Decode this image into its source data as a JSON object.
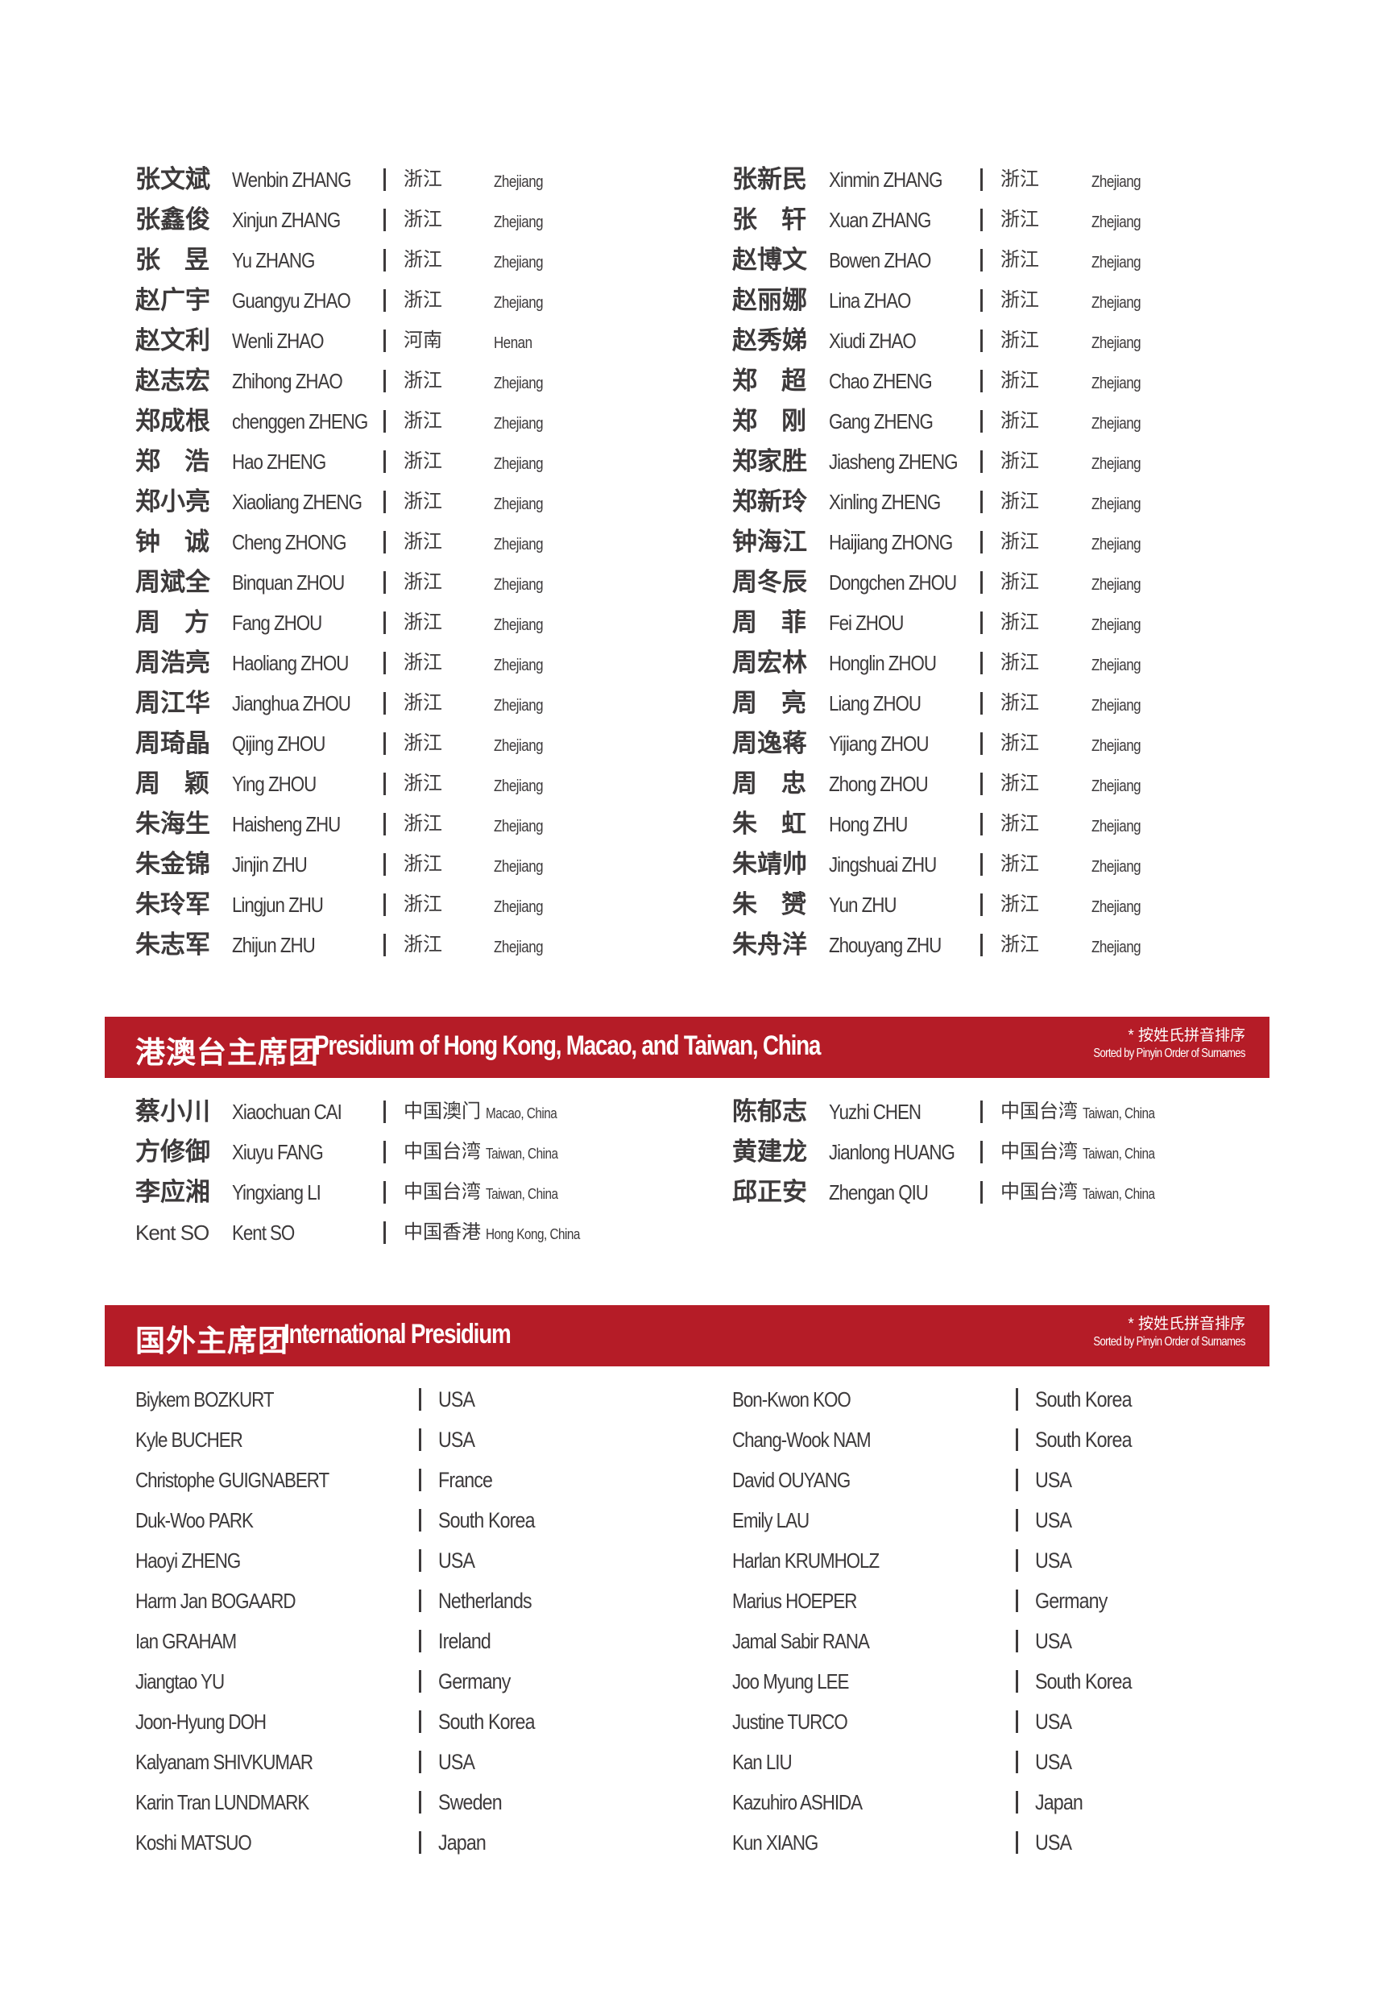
{
  "colors": {
    "accent": "#b51c27",
    "text": "#3d3a3b"
  },
  "mainland": {
    "left": [
      {
        "cn": "张文斌",
        "en": "Wenbin ZHANG",
        "pcn": "浙江",
        "pen": "Zhejiang"
      },
      {
        "cn": "张鑫俊",
        "en": "Xinjun ZHANG",
        "pcn": "浙江",
        "pen": "Zhejiang"
      },
      {
        "cn": "张昱",
        "en": "Yu ZHANG",
        "pcn": "浙江",
        "pen": "Zhejiang"
      },
      {
        "cn": "赵广宇",
        "en": "Guangyu ZHAO",
        "pcn": "浙江",
        "pen": "Zhejiang"
      },
      {
        "cn": "赵文利",
        "en": "Wenli ZHAO",
        "pcn": "河南",
        "pen": "Henan"
      },
      {
        "cn": "赵志宏",
        "en": "Zhihong ZHAO",
        "pcn": "浙江",
        "pen": "Zhejiang"
      },
      {
        "cn": "郑成根",
        "en": "chenggen ZHENG",
        "pcn": "浙江",
        "pen": "Zhejiang"
      },
      {
        "cn": "郑浩",
        "en": "Hao ZHENG",
        "pcn": "浙江",
        "pen": "Zhejiang"
      },
      {
        "cn": "郑小亮",
        "en": "Xiaoliang ZHENG",
        "pcn": "浙江",
        "pen": "Zhejiang"
      },
      {
        "cn": "钟诚",
        "en": "Cheng ZHONG",
        "pcn": "浙江",
        "pen": "Zhejiang"
      },
      {
        "cn": "周斌全",
        "en": "Binquan ZHOU",
        "pcn": "浙江",
        "pen": "Zhejiang"
      },
      {
        "cn": "周方",
        "en": "Fang ZHOU",
        "pcn": "浙江",
        "pen": "Zhejiang"
      },
      {
        "cn": "周浩亮",
        "en": "Haoliang ZHOU",
        "pcn": "浙江",
        "pen": "Zhejiang"
      },
      {
        "cn": "周江华",
        "en": "Jianghua ZHOU",
        "pcn": "浙江",
        "pen": "Zhejiang"
      },
      {
        "cn": "周琦晶",
        "en": "Qijing ZHOU",
        "pcn": "浙江",
        "pen": "Zhejiang"
      },
      {
        "cn": "周颖",
        "en": "Ying ZHOU",
        "pcn": "浙江",
        "pen": "Zhejiang"
      },
      {
        "cn": "朱海生",
        "en": "Haisheng ZHU",
        "pcn": "浙江",
        "pen": "Zhejiang"
      },
      {
        "cn": "朱金锦",
        "en": "Jinjin ZHU",
        "pcn": "浙江",
        "pen": "Zhejiang"
      },
      {
        "cn": "朱玲军",
        "en": "Lingjun ZHU",
        "pcn": "浙江",
        "pen": "Zhejiang"
      },
      {
        "cn": "朱志军",
        "en": "Zhijun ZHU",
        "pcn": "浙江",
        "pen": "Zhejiang"
      }
    ],
    "right": [
      {
        "cn": "张新民",
        "en": "Xinmin ZHANG",
        "pcn": "浙江",
        "pen": "Zhejiang"
      },
      {
        "cn": "张轩",
        "en": "Xuan ZHANG",
        "pcn": "浙江",
        "pen": "Zhejiang"
      },
      {
        "cn": "赵博文",
        "en": "Bowen ZHAO",
        "pcn": "浙江",
        "pen": "Zhejiang"
      },
      {
        "cn": "赵丽娜",
        "en": "Lina ZHAO",
        "pcn": "浙江",
        "pen": "Zhejiang"
      },
      {
        "cn": "赵秀娣",
        "en": "Xiudi ZHAO",
        "pcn": "浙江",
        "pen": "Zhejiang"
      },
      {
        "cn": "郑超",
        "en": "Chao ZHENG",
        "pcn": "浙江",
        "pen": "Zhejiang"
      },
      {
        "cn": "郑刚",
        "en": "Gang ZHENG",
        "pcn": "浙江",
        "pen": "Zhejiang"
      },
      {
        "cn": "郑家胜",
        "en": "Jiasheng ZHENG",
        "pcn": "浙江",
        "pen": "Zhejiang"
      },
      {
        "cn": "郑新玲",
        "en": "Xinling ZHENG",
        "pcn": "浙江",
        "pen": "Zhejiang"
      },
      {
        "cn": "钟海江",
        "en": "Haijiang ZHONG",
        "pcn": "浙江",
        "pen": "Zhejiang"
      },
      {
        "cn": "周冬辰",
        "en": "Dongchen ZHOU",
        "pcn": "浙江",
        "pen": "Zhejiang"
      },
      {
        "cn": "周菲",
        "en": "Fei ZHOU",
        "pcn": "浙江",
        "pen": "Zhejiang"
      },
      {
        "cn": "周宏林",
        "en": "Honglin ZHOU",
        "pcn": "浙江",
        "pen": "Zhejiang"
      },
      {
        "cn": "周亮",
        "en": "Liang ZHOU",
        "pcn": "浙江",
        "pen": "Zhejiang"
      },
      {
        "cn": "周逸蒋",
        "en": "Yijiang ZHOU",
        "pcn": "浙江",
        "pen": "Zhejiang"
      },
      {
        "cn": "周忠",
        "en": "Zhong ZHOU",
        "pcn": "浙江",
        "pen": "Zhejiang"
      },
      {
        "cn": "朱虹",
        "en": "Hong ZHU",
        "pcn": "浙江",
        "pen": "Zhejiang"
      },
      {
        "cn": "朱靖帅",
        "en": "Jingshuai ZHU",
        "pcn": "浙江",
        "pen": "Zhejiang"
      },
      {
        "cn": "朱赟",
        "en": "Yun ZHU",
        "pcn": "浙江",
        "pen": "Zhejiang"
      },
      {
        "cn": "朱舟洋",
        "en": "Zhouyang ZHU",
        "pcn": "浙江",
        "pen": "Zhejiang"
      }
    ]
  },
  "hmt": {
    "title_cn": "港澳台主席团",
    "title_en": "Presidium of Hong Kong, Macao, and Taiwan, China",
    "note_cn": "* 按姓氏拼音排序",
    "note_en": "Sorted by Pinyin Order of Surnames",
    "left": [
      {
        "cn": "蔡小川",
        "en": "Xiaochuan CAI",
        "pcn": "中国澳门",
        "pen": "Macao, China"
      },
      {
        "cn": "方修御",
        "en": "Xiuyu FANG",
        "pcn": "中国台湾",
        "pen": "Taiwan, China"
      },
      {
        "cn": "李应湘",
        "en": "Yingxiang LI",
        "pcn": "中国台湾",
        "pen": "Taiwan, China"
      },
      {
        "cn": "Kent SO",
        "en": "Kent SO",
        "pcn": "中国香港",
        "pen": "Hong Kong, China",
        "latin": true
      }
    ],
    "right": [
      {
        "cn": "陈郁志",
        "en": "Yuzhi CHEN",
        "pcn": "中国台湾",
        "pen": "Taiwan, China"
      },
      {
        "cn": "黄建龙",
        "en": "Jianlong HUANG",
        "pcn": "中国台湾",
        "pen": "Taiwan, China"
      },
      {
        "cn": "邱正安",
        "en": "Zhengan QIU",
        "pcn": "中国台湾",
        "pen": "Taiwan, China"
      }
    ]
  },
  "intl": {
    "title_cn": "国外主席团",
    "title_en": "International Presidium",
    "note_cn": "* 按姓氏拼音排序",
    "note_en": "Sorted by Pinyin Order of Surnames",
    "left": [
      {
        "name": "Biykem BOZKURT",
        "country": "USA"
      },
      {
        "name": "Kyle BUCHER",
        "country": "USA"
      },
      {
        "name": "Christophe GUIGNABERT",
        "country": "France"
      },
      {
        "name": "Duk-Woo PARK",
        "country": "South Korea"
      },
      {
        "name": "Haoyi ZHENG",
        "country": "USA"
      },
      {
        "name": "Harm Jan BOGAARD",
        "country": "Netherlands"
      },
      {
        "name": "Ian GRAHAM",
        "country": "Ireland"
      },
      {
        "name": "Jiangtao YU",
        "country": "Germany"
      },
      {
        "name": "Joon-Hyung DOH",
        "country": "South Korea"
      },
      {
        "name": "Kalyanam SHIVKUMAR",
        "country": "USA"
      },
      {
        "name": "Karin Tran LUNDMARK",
        "country": "Sweden"
      },
      {
        "name": "Koshi  MATSUO",
        "country": "Japan"
      }
    ],
    "right": [
      {
        "name": "Bon-Kwon KOO",
        "country": "South Korea"
      },
      {
        "name": "Chang-Wook NAM",
        "country": "South Korea"
      },
      {
        "name": "David OUYANG",
        "country": "USA"
      },
      {
        "name": "Emily LAU",
        "country": "USA"
      },
      {
        "name": "Harlan KRUMHOLZ",
        "country": "USA"
      },
      {
        "name": "Marius HOEPER",
        "country": "Germany"
      },
      {
        "name": "Jamal Sabir RANA",
        "country": "USA"
      },
      {
        "name": "Joo Myung LEE",
        "country": "South Korea"
      },
      {
        "name": "Justine TURCO",
        "country": "USA"
      },
      {
        "name": "Kan LIU",
        "country": "USA"
      },
      {
        "name": "Kazuhiro ASHIDA",
        "country": "Japan"
      },
      {
        "name": "Kun XIANG",
        "country": "USA"
      }
    ]
  }
}
